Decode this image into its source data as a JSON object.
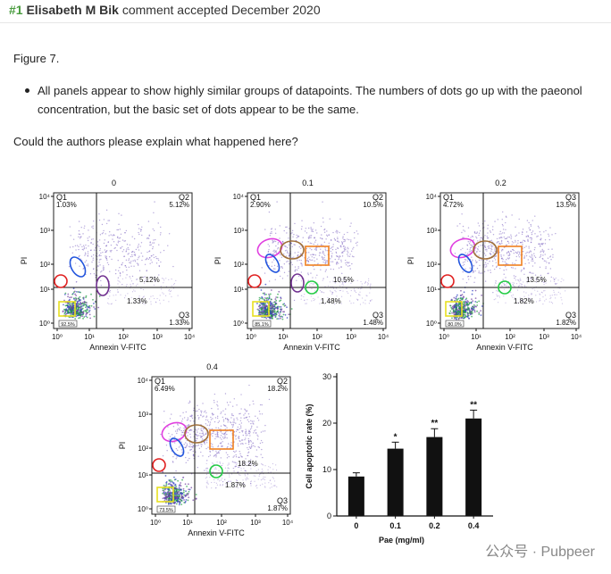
{
  "header": {
    "number": "#1",
    "author": "Elisabeth M Bik",
    "status": "comment accepted December 2020"
  },
  "comment": {
    "figure_ref": "Figure 7.",
    "bullet": "All panels appear to show highly similar groups of datapoints. The numbers of dots go up with the paeonol concentration, but the basic set of dots appear to be the same.",
    "question": "Could the authors please explain what happened here?"
  },
  "flow_panels": [
    {
      "title": "0",
      "q1": "Q1",
      "q1_val": "1.03%",
      "q2": "Q2",
      "q2_val": "5.12%",
      "q3": "Q3",
      "q3_val": "1.33%",
      "q4_val": "92.5%",
      "mid_right": "5.12%",
      "low_right": "1.33%"
    },
    {
      "title": "0.1",
      "q1": "Q1",
      "q1_val": "2.90%",
      "q2": "Q2",
      "q2_val": "10.5%",
      "q3": "Q3",
      "q3_val": "1.48%",
      "q4_val": "85.1%",
      "mid_right": "10.5%",
      "low_right": "1.48%"
    },
    {
      "title": "0.2",
      "q1": "Q1",
      "q1_val": "4.72%",
      "q2": "Q3",
      "q2_val": "13.5%",
      "q3": "Q3",
      "q3_val": "1.82%",
      "q4_val": "80.0%",
      "mid_right": "13.5%",
      "low_right": "1.82%"
    },
    {
      "title": "0.4",
      "q1": "Q1",
      "q1_val": "6.49%",
      "q2": "Q2",
      "q2_val": "18.2%",
      "q3": "Q3",
      "q3_val": "1.87%",
      "q4_val": "73.5%",
      "mid_right": "18.2%",
      "low_right": "1.87%"
    }
  ],
  "axes": {
    "x_label": "Annexin V-FITC",
    "y_label": "PI",
    "ticks": [
      "10⁰",
      "10¹",
      "10²",
      "10³",
      "10⁴"
    ]
  },
  "chart_data": {
    "type": "bar",
    "categories": [
      "0",
      "0.1",
      "0.2",
      "0.4"
    ],
    "values": [
      8.5,
      14.5,
      17.0,
      21.0
    ],
    "errors": [
      0.8,
      1.4,
      1.8,
      1.8
    ],
    "significance": [
      "",
      "*",
      "**",
      "**"
    ],
    "xlabel": "Pae (mg/ml)",
    "ylabel": "Cell apoptotic rate (%)",
    "ylim": [
      0,
      30
    ],
    "yticks": [
      "0",
      "10",
      "20",
      "30"
    ]
  },
  "watermark": "公众号 · Pubpeer",
  "colors": {
    "accent": "#4a9c3f",
    "gate_magenta": "#e040e0",
    "gate_blue": "#2255dd",
    "gate_brown": "#a0703a",
    "gate_orange": "#f08020",
    "gate_green": "#22cc44",
    "gate_red": "#e02020",
    "gate_purple": "#703090",
    "gate_yellow": "#e8e020"
  }
}
